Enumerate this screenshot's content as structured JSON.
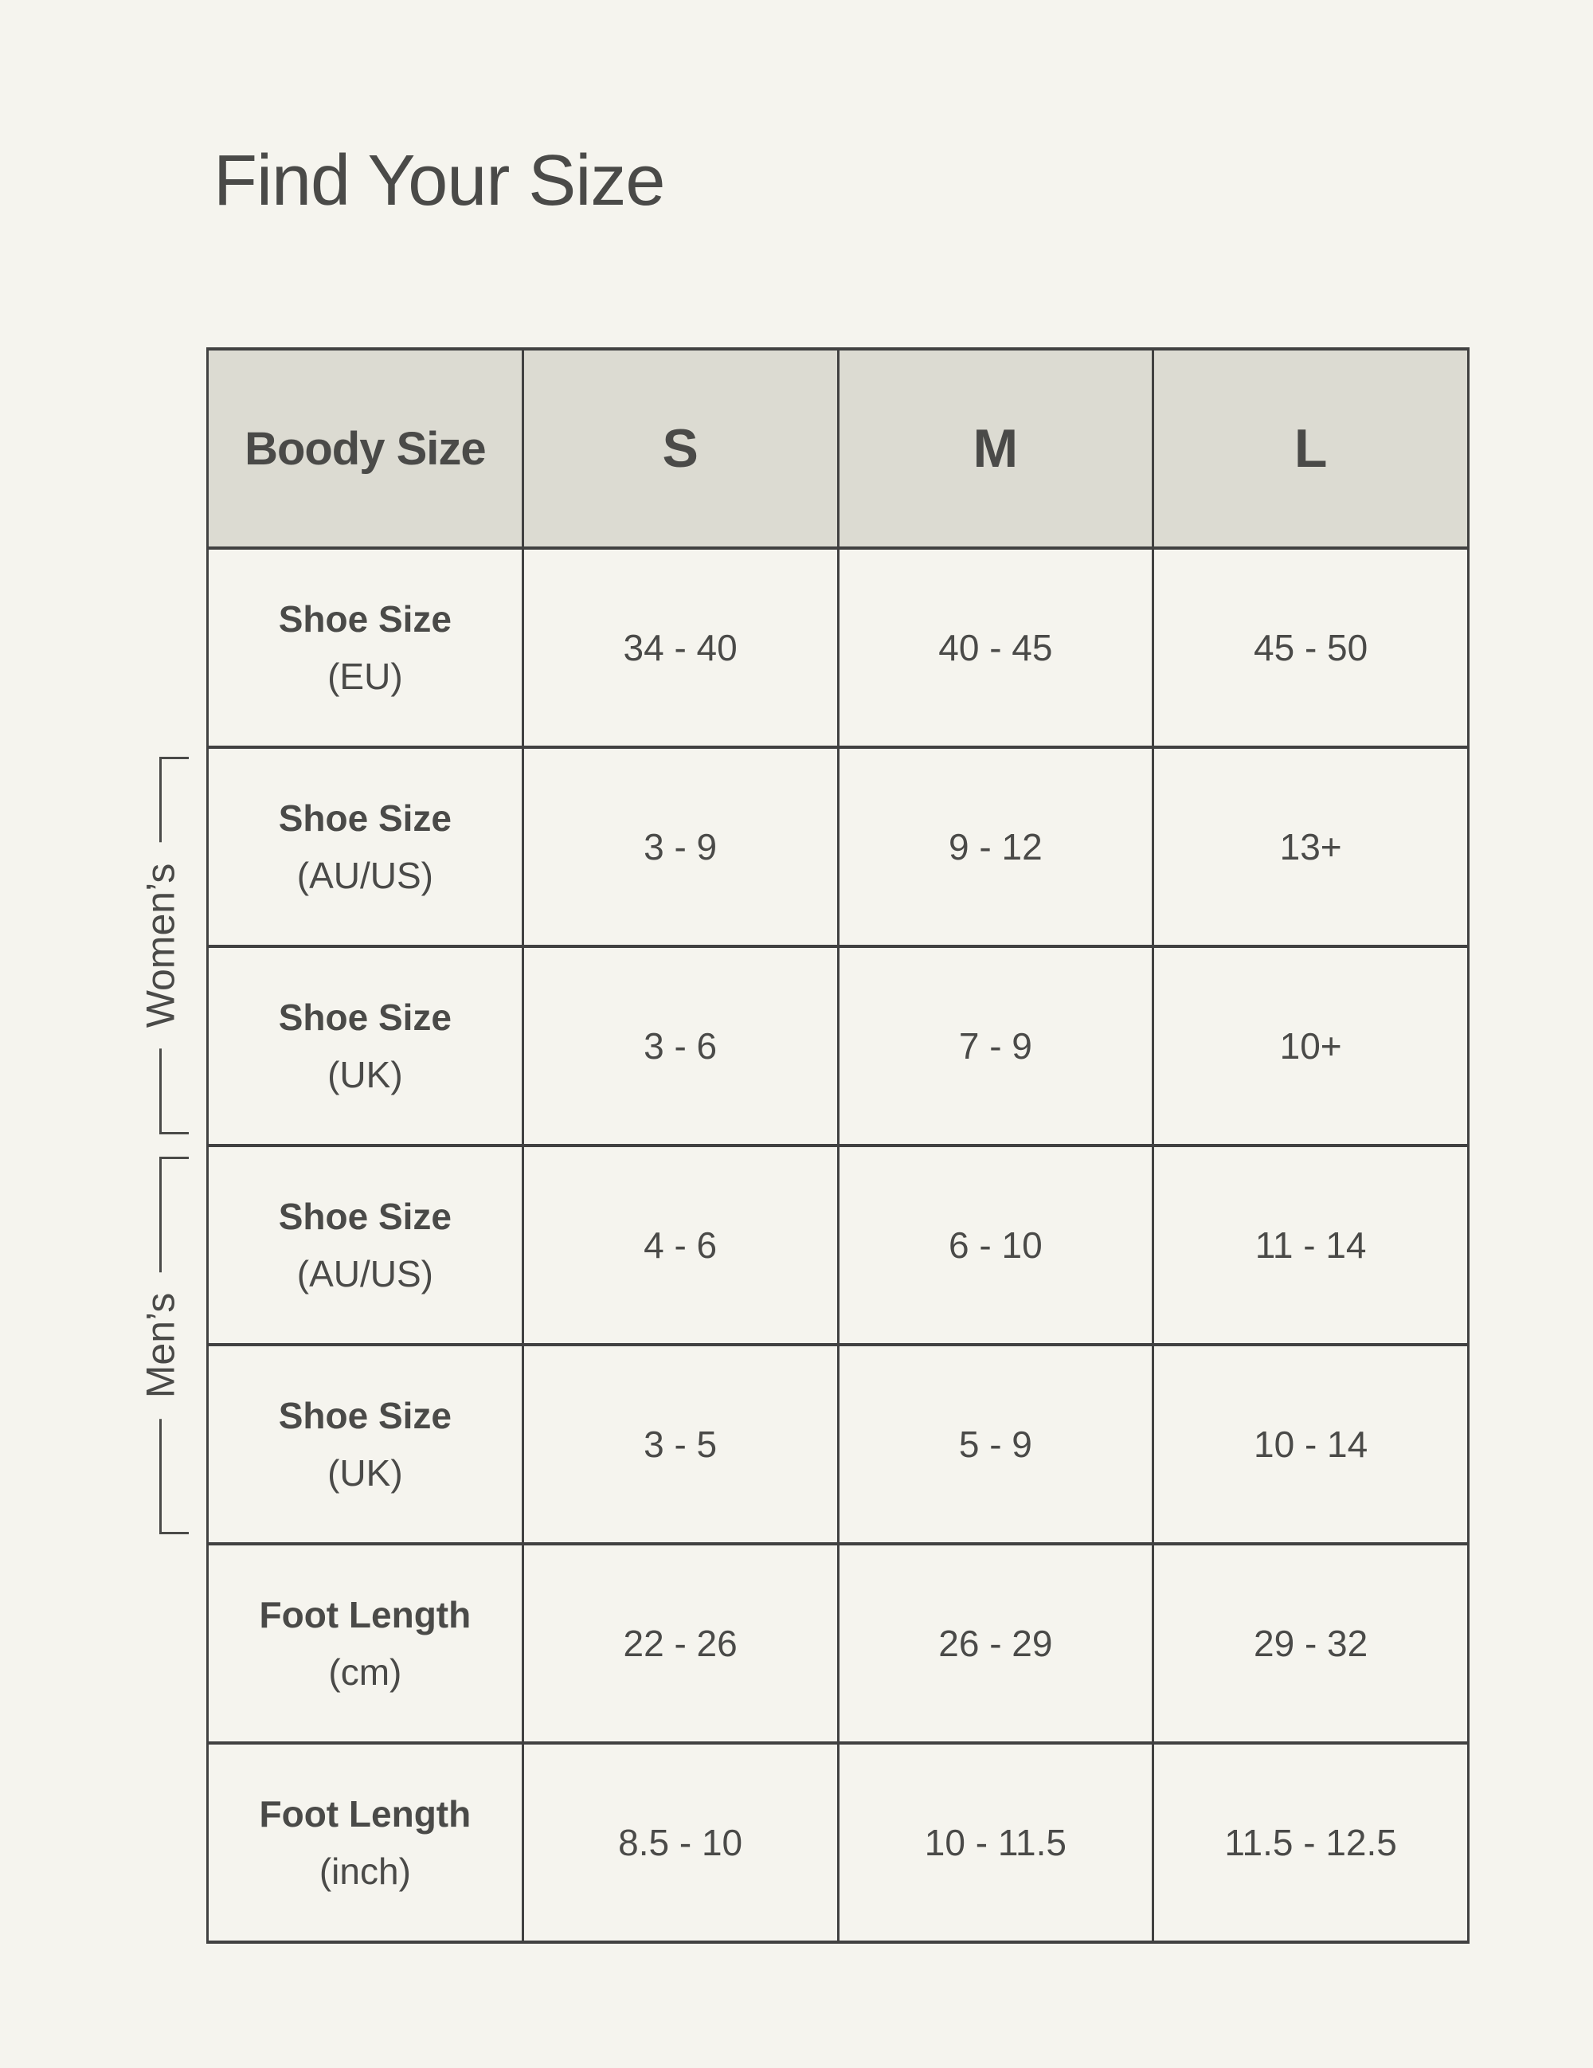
{
  "page": {
    "title": "Find Your Size"
  },
  "groups": {
    "womens": "Women’s",
    "mens": "Men’s"
  },
  "table": {
    "header": [
      "Boody Size",
      "S",
      "M",
      "L"
    ],
    "rows": [
      {
        "label": "Shoe Size",
        "sub": "(EU)",
        "values": [
          "34 - 40",
          "40 - 45",
          "45 - 50"
        ]
      },
      {
        "label": "Shoe Size",
        "sub": "(AU/US)",
        "values": [
          "3 - 9",
          "9 - 12",
          "13+"
        ]
      },
      {
        "label": "Shoe Size",
        "sub": "(UK)",
        "values": [
          "3 - 6",
          "7 - 9",
          "10+"
        ]
      },
      {
        "label": "Shoe Size",
        "sub": "(AU/US)",
        "values": [
          "4 - 6",
          "6 - 10",
          "11 - 14"
        ]
      },
      {
        "label": "Shoe Size",
        "sub": "(UK)",
        "values": [
          "3 - 5",
          "5 - 9",
          "10 - 14"
        ]
      },
      {
        "label": "Foot Length",
        "sub": "(cm)",
        "values": [
          "22 - 26",
          "26 - 29",
          "29 - 32"
        ]
      },
      {
        "label": "Foot Length",
        "sub": "(inch)",
        "values": [
          "8.5 - 10",
          "10 - 11.5",
          "11.5 - 12.5"
        ]
      }
    ]
  },
  "colors": {
    "bg": "#f5f4ee",
    "header_bg": "#dcdbd2",
    "border": "#414141",
    "text": "#4a4a48",
    "bracket": "#4a4a48"
  }
}
